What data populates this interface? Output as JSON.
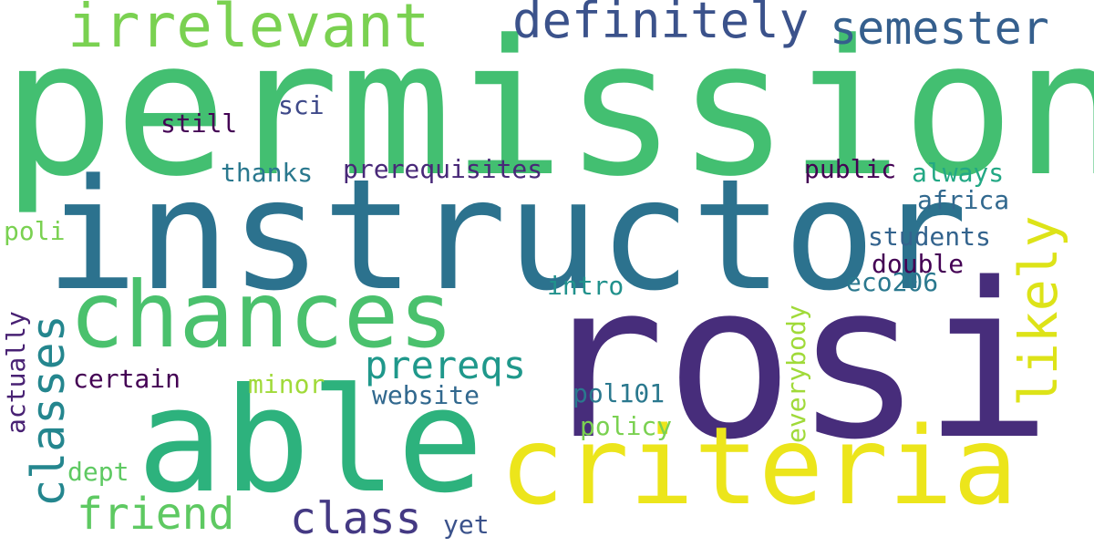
{
  "words": [
    {
      "key": "permission",
      "text": "permission",
      "color": "#43bf71"
    },
    {
      "key": "rosi",
      "text": "rosi",
      "color": "#472d7b"
    },
    {
      "key": "instructor",
      "text": "instructor",
      "color": "#2c728e"
    },
    {
      "key": "able",
      "text": "able",
      "color": "#2db27d"
    },
    {
      "key": "criteria",
      "text": "criteria",
      "color": "#ece51b"
    },
    {
      "key": "chances",
      "text": "chances",
      "color": "#4ac16d"
    },
    {
      "key": "irrelevant",
      "text": "irrelevant",
      "color": "#7ad151"
    },
    {
      "key": "definitely",
      "text": "definitely",
      "color": "#3b528b"
    },
    {
      "key": "semester",
      "text": "semester",
      "color": "#355f8d"
    },
    {
      "key": "likely",
      "text": "likely",
      "color": "#dde318"
    },
    {
      "key": "classes",
      "text": "classes",
      "color": "#24868e"
    },
    {
      "key": "prereqs",
      "text": "prereqs",
      "color": "#1f988b"
    },
    {
      "key": "friend",
      "text": "friend",
      "color": "#5ec962"
    },
    {
      "key": "class",
      "text": "class",
      "color": "#443983"
    },
    {
      "key": "sci",
      "text": "sci",
      "color": "#3e4989"
    },
    {
      "key": "still",
      "text": "still",
      "color": "#440154"
    },
    {
      "key": "thanks",
      "text": "thanks",
      "color": "#2a788e"
    },
    {
      "key": "prerequisites",
      "text": "prerequisites",
      "color": "#482878"
    },
    {
      "key": "public",
      "text": "public",
      "color": "#440154"
    },
    {
      "key": "always",
      "text": "always",
      "color": "#22a884"
    },
    {
      "key": "africa",
      "text": "africa",
      "color": "#31688e"
    },
    {
      "key": "students",
      "text": "students",
      "color": "#33638d"
    },
    {
      "key": "double",
      "text": "double",
      "color": "#440154"
    },
    {
      "key": "eco206",
      "text": "eco206",
      "color": "#2a788e"
    },
    {
      "key": "poli",
      "text": "poli",
      "color": "#7ad151"
    },
    {
      "key": "intro",
      "text": "intro",
      "color": "#21918c"
    },
    {
      "key": "certain",
      "text": "certain",
      "color": "#440154"
    },
    {
      "key": "minor",
      "text": "minor",
      "color": "#a0da39"
    },
    {
      "key": "website",
      "text": "website",
      "color": "#31688e"
    },
    {
      "key": "pol101",
      "text": "pol101",
      "color": "#2a788e"
    },
    {
      "key": "policy",
      "text": "policy",
      "color": "#7ad151"
    },
    {
      "key": "dept",
      "text": "dept",
      "color": "#5ec962"
    },
    {
      "key": "yet",
      "text": "yet",
      "color": "#3b528b"
    },
    {
      "key": "actually",
      "text": "actually",
      "color": "#482173"
    },
    {
      "key": "everybody",
      "text": "everybody",
      "color": "#a0da39"
    }
  ]
}
